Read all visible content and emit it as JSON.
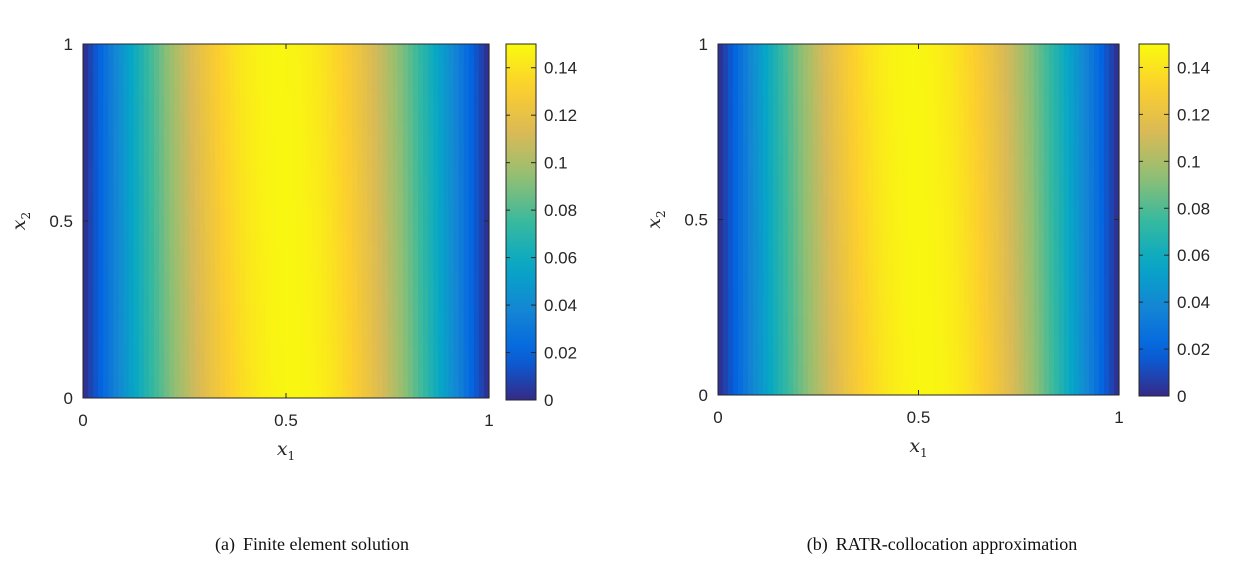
{
  "chart_data": [
    {
      "type": "heatmap",
      "label": "(a)",
      "caption": "Finite element solution",
      "xlabel": "x",
      "xlabel_sub": "1",
      "ylabel": "x",
      "ylabel_sub": "2",
      "xlim": [
        0,
        1
      ],
      "ylim": [
        0,
        1
      ],
      "xticks": [
        "0",
        "0.5",
        "1"
      ],
      "yticks": [
        "0",
        "0.5",
        "1"
      ],
      "colorbar": {
        "range": [
          0,
          0.15
        ],
        "ticks": [
          0,
          0.02,
          0.04,
          0.06,
          0.08,
          0.1,
          0.12,
          0.14
        ],
        "tick_labels": [
          "0",
          "0.02",
          "0.04",
          "0.06",
          "0.08",
          "0.1",
          "0.12",
          "0.14"
        ],
        "colormap": "parula"
      },
      "field": {
        "peak_value": 0.148,
        "peak_x_bottom": 0.52,
        "peak_x_top": 0.48,
        "boundary_value": 0
      }
    },
    {
      "type": "heatmap",
      "label": "(b)",
      "caption": "RATR-collocation approximation",
      "xlabel": "x",
      "xlabel_sub": "1",
      "ylabel": "x",
      "ylabel_sub": "2",
      "xlim": [
        0,
        1
      ],
      "ylim": [
        0,
        1
      ],
      "xticks": [
        "0",
        "0.5",
        "1"
      ],
      "yticks": [
        "0",
        "0.5",
        "1"
      ],
      "colorbar": {
        "range": [
          0,
          0.15
        ],
        "ticks": [
          0,
          0.02,
          0.04,
          0.06,
          0.08,
          0.1,
          0.12,
          0.14
        ],
        "tick_labels": [
          "0",
          "0.02",
          "0.04",
          "0.06",
          "0.08",
          "0.1",
          "0.12",
          "0.14"
        ],
        "colormap": "parula"
      },
      "field": {
        "peak_value": 0.148,
        "peak_x_bottom": 0.52,
        "peak_x_top": 0.48,
        "boundary_value": 0
      }
    }
  ],
  "colors": {
    "parula": [
      "#352a87",
      "#0363e1",
      "#1485d4",
      "#06a7c6",
      "#38b99e",
      "#92bf73",
      "#d9ba56",
      "#fcce2e",
      "#f9fb0e"
    ]
  }
}
